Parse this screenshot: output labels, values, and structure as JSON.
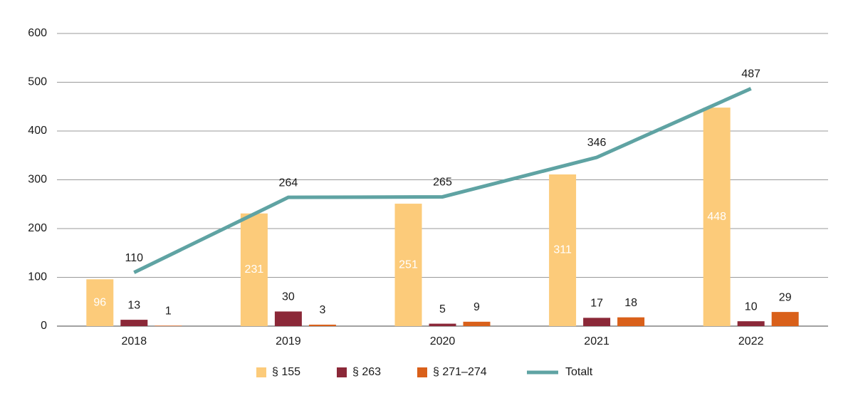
{
  "chart_data": {
    "type": "bar",
    "categories": [
      "2018",
      "2019",
      "2020",
      "2021",
      "2022"
    ],
    "series": [
      {
        "name": "§ 155",
        "color": "#fccb7a",
        "values": [
          96,
          231,
          251,
          311,
          448
        ]
      },
      {
        "name": "§ 263",
        "color": "#8b2838",
        "values": [
          13,
          30,
          5,
          17,
          10
        ]
      },
      {
        "name": "§ 271–274",
        "color": "#d9601a",
        "values": [
          1,
          3,
          9,
          18,
          29
        ]
      },
      {
        "name": "Totalt",
        "type": "line",
        "color": "#5fa3a3",
        "values": [
          110,
          264,
          265,
          346,
          487
        ]
      }
    ],
    "ylim": [
      0,
      600
    ],
    "yticks": [
      0,
      100,
      200,
      300,
      400,
      500,
      600
    ],
    "grid": true
  }
}
